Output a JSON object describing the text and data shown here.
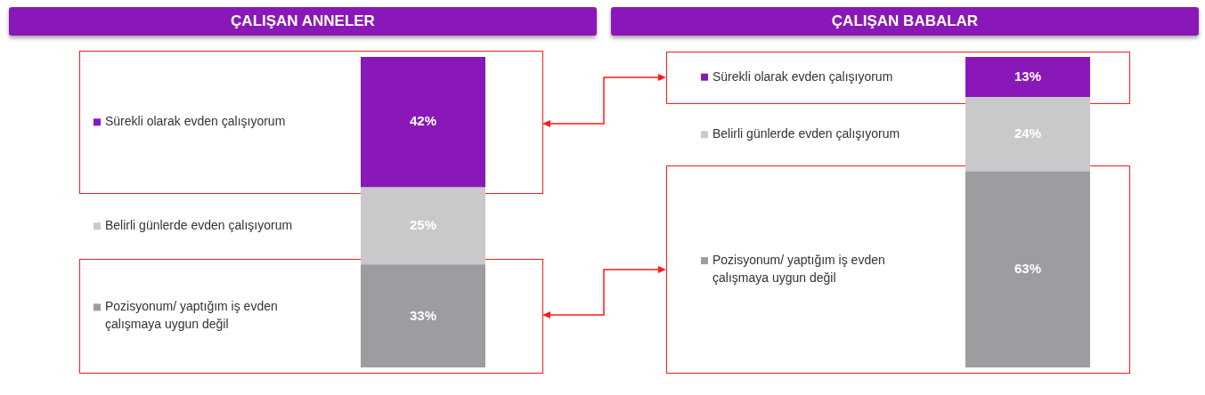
{
  "chart_data": [
    {
      "type": "bar",
      "title": "ÇALIŞAN ANNELER",
      "stacked": true,
      "legend": "left",
      "categories": [
        null
      ],
      "ylim": [
        0,
        100
      ],
      "series": [
        {
          "name": "Pozisyonum/ yaptığım iş evden çalışmaya uygun değil",
          "color": "#9d9da1",
          "values": [
            33
          ],
          "value_labels": [
            "33%"
          ]
        },
        {
          "name": "Belirli günlerde evden çalışıyorum",
          "color": "#c9c9cb",
          "values": [
            25
          ],
          "value_labels": [
            "25%"
          ]
        },
        {
          "name": "Sürekli olarak evden çalışıyorum",
          "color": "#8a18b8",
          "values": [
            42
          ],
          "value_labels": [
            "42%"
          ]
        }
      ]
    },
    {
      "type": "bar",
      "title": "ÇALIŞAN BABALAR",
      "stacked": true,
      "legend": "left",
      "categories": [
        null
      ],
      "ylim": [
        0,
        100
      ],
      "series": [
        {
          "name": "Pozisyonum/ yaptığım iş evden çalışmaya uygun değil",
          "color": "#9d9da1",
          "values": [
            63
          ],
          "value_labels": [
            "63%"
          ]
        },
        {
          "name": "Belirli günlerde evden çalışıyorum",
          "color": "#c9c9cb",
          "values": [
            24
          ],
          "value_labels": [
            "24%"
          ]
        },
        {
          "name": "Sürekli olarak evden çalışıyorum",
          "color": "#8a18b8",
          "values": [
            13
          ],
          "value_labels": [
            "13%"
          ]
        }
      ]
    }
  ]
}
